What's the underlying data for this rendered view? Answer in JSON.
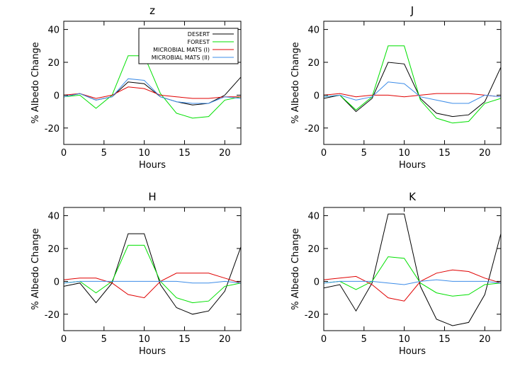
{
  "chart_data": [
    {
      "type": "line",
      "title": "z",
      "xlabel": "Hours",
      "ylabel": "% Albedo Change",
      "xlim": [
        0,
        22
      ],
      "ylim": [
        -30,
        45
      ],
      "xticks": [
        0,
        5,
        10,
        15,
        20
      ],
      "yticks": [
        -20,
        0,
        20,
        40
      ],
      "grid": false,
      "legend": "top-right",
      "x": [
        0,
        2,
        4,
        6,
        8,
        10,
        12,
        14,
        16,
        18,
        20,
        22
      ],
      "series": [
        {
          "name": "DESERT",
          "color": "#000000",
          "values": [
            -1,
            1,
            -3,
            -1,
            8,
            7,
            -1,
            -4,
            -6,
            -5,
            0,
            11
          ]
        },
        {
          "name": "FOREST",
          "color": "#00e000",
          "values": [
            -1,
            0,
            -8,
            0,
            24,
            24,
            1,
            -11,
            -14,
            -13,
            -3,
            -1
          ]
        },
        {
          "name": "MICROBIAL MATS (I)",
          "color": "#e00000",
          "values": [
            0,
            1,
            -2,
            0,
            5,
            4,
            0,
            -1,
            -2,
            -2,
            -1,
            -1
          ]
        },
        {
          "name": "MICROBIAL MATS (II)",
          "color": "#3c8ce8",
          "values": [
            -1,
            1,
            -3,
            -1,
            10,
            9,
            -1,
            -4,
            -5,
            -5,
            -1,
            -2
          ]
        }
      ]
    },
    {
      "type": "line",
      "title": "J",
      "xlabel": "Hours",
      "ylabel": "% Albedo Change",
      "xlim": [
        0,
        22
      ],
      "ylim": [
        -30,
        45
      ],
      "xticks": [
        0,
        5,
        10,
        15,
        20
      ],
      "yticks": [
        -20,
        0,
        20,
        40
      ],
      "grid": false,
      "x": [
        0,
        2,
        4,
        6,
        8,
        10,
        12,
        14,
        16,
        18,
        20,
        22
      ],
      "series": [
        {
          "color": "#000000",
          "values": [
            -2,
            0,
            -10,
            -2,
            20,
            19,
            -2,
            -11,
            -13,
            -12,
            -4,
            17
          ]
        },
        {
          "color": "#00e000",
          "values": [
            -1,
            0,
            -9,
            -1,
            30,
            30,
            -3,
            -14,
            -17,
            -16,
            -5,
            -2
          ]
        },
        {
          "color": "#e00000",
          "values": [
            0,
            1,
            -1,
            0,
            0,
            -1,
            0,
            1,
            1,
            1,
            0,
            -1
          ]
        },
        {
          "color": "#3c8ce8",
          "values": [
            -1,
            0,
            -3,
            -1,
            8,
            7,
            -1,
            -3,
            -5,
            -5,
            0,
            -1
          ]
        }
      ]
    },
    {
      "type": "line",
      "title": "H",
      "xlabel": "Hours",
      "ylabel": "% Albedo Change",
      "xlim": [
        0,
        22
      ],
      "ylim": [
        -30,
        45
      ],
      "xticks": [
        0,
        5,
        10,
        15,
        20
      ],
      "yticks": [
        -20,
        0,
        20,
        40
      ],
      "grid": false,
      "x": [
        0,
        2,
        4,
        6,
        8,
        10,
        12,
        14,
        16,
        18,
        20,
        22
      ],
      "series": [
        {
          "color": "#000000",
          "values": [
            -3,
            -1,
            -13,
            -1,
            29,
            29,
            -2,
            -16,
            -20,
            -18,
            -6,
            21
          ]
        },
        {
          "color": "#00e000",
          "values": [
            -1,
            0,
            -7,
            0,
            22,
            22,
            0,
            -10,
            -13,
            -12,
            -3,
            -1
          ]
        },
        {
          "color": "#e00000",
          "values": [
            1,
            2,
            2,
            -1,
            -8,
            -10,
            0,
            5,
            5,
            5,
            2,
            -1
          ]
        },
        {
          "color": "#3c8ce8",
          "values": [
            -1,
            0,
            0,
            0,
            0,
            0,
            0,
            0,
            -1,
            -1,
            0,
            -1
          ]
        }
      ]
    },
    {
      "type": "line",
      "title": "K",
      "xlabel": "Hours",
      "ylabel": "% Albedo Change",
      "xlim": [
        0,
        22
      ],
      "ylim": [
        -30,
        45
      ],
      "xticks": [
        0,
        5,
        10,
        15,
        20
      ],
      "yticks": [
        -20,
        0,
        20,
        40
      ],
      "grid": false,
      "x": [
        0,
        2,
        4,
        6,
        8,
        10,
        12,
        14,
        16,
        18,
        20,
        22
      ],
      "series": [
        {
          "color": "#000000",
          "values": [
            -4,
            -2,
            -18,
            -1,
            41,
            41,
            -3,
            -23,
            -27,
            -25,
            -8,
            29
          ]
        },
        {
          "color": "#00e000",
          "values": [
            -1,
            0,
            -5,
            0,
            15,
            14,
            -1,
            -7,
            -9,
            -8,
            -2,
            -1
          ]
        },
        {
          "color": "#e00000",
          "values": [
            1,
            2,
            3,
            -2,
            -10,
            -12,
            0,
            5,
            7,
            6,
            2,
            -1
          ]
        },
        {
          "color": "#3c8ce8",
          "values": [
            -1,
            0,
            0,
            0,
            -1,
            -2,
            0,
            1,
            0,
            0,
            0,
            -1
          ]
        }
      ]
    }
  ]
}
